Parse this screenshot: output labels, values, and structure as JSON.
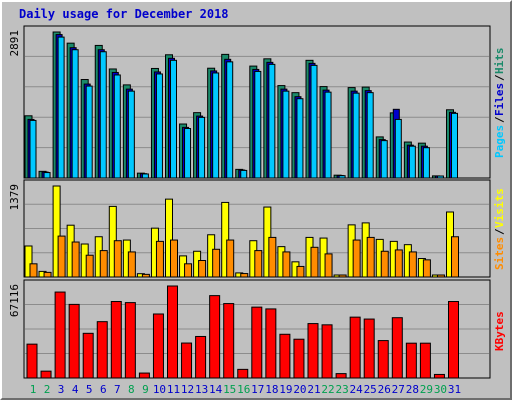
{
  "title": "Daily usage for December 2018",
  "chart_data": [
    {
      "type": "bar",
      "panel": "hits-files-pages",
      "ymax_label": "2891",
      "ymax": 2891,
      "x": [
        "1",
        "2",
        "3",
        "4",
        "5",
        "6",
        "7",
        "8",
        "9",
        "10",
        "11",
        "12",
        "13",
        "14",
        "15",
        "16",
        "17",
        "18",
        "19",
        "20",
        "21",
        "22",
        "23",
        "24",
        "25",
        "26",
        "27",
        "28",
        "29",
        "30",
        "31"
      ],
      "weekend_days": [
        "1",
        "2",
        "8",
        "9",
        "15",
        "16",
        "22",
        "23",
        "29",
        "30"
      ],
      "series": [
        {
          "name": "Hits",
          "color": "#1a8a6a",
          "values": [
            1232,
            132,
            2891,
            2670,
            1950,
            2625,
            2159,
            1844,
            96,
            2169,
            2440,
            1069,
            1294,
            2174,
            2448,
            171,
            2216,
            2360,
            1830,
            1690,
            2330,
            1810,
            56,
            1790,
            1800,
            814,
            1290,
            712,
            690,
            42,
            1351
          ]
        },
        {
          "name": "Files",
          "color": "#0000cc",
          "values": [
            1160,
            118,
            2840,
            2580,
            1860,
            2540,
            2090,
            1760,
            86,
            2100,
            2370,
            1002,
            1226,
            2120,
            2350,
            158,
            2150,
            2290,
            1760,
            1610,
            2270,
            1740,
            50,
            1720,
            1730,
            760,
            1360,
            650,
            630,
            38,
            1300
          ]
        },
        {
          "name": "Pages",
          "color": "#00c8ff",
          "values": [
            1140,
            108,
            2790,
            2540,
            1820,
            2500,
            2040,
            1720,
            80,
            2060,
            2330,
            980,
            1200,
            2080,
            2300,
            150,
            2110,
            2250,
            1720,
            1570,
            2230,
            1700,
            46,
            1680,
            1690,
            740,
            1160,
            630,
            600,
            34,
            1280
          ]
        }
      ],
      "legend": [
        "Pages",
        "/",
        "Files",
        "/",
        "Hits"
      ],
      "legend_placement": "right, vertical"
    },
    {
      "type": "bar",
      "panel": "visits-sites",
      "ymax_label": "1379",
      "ymax": 1379,
      "x": [
        "1",
        "2",
        "3",
        "4",
        "5",
        "6",
        "7",
        "8",
        "9",
        "10",
        "11",
        "12",
        "13",
        "14",
        "15",
        "16",
        "17",
        "18",
        "19",
        "20",
        "21",
        "22",
        "23",
        "24",
        "25",
        "26",
        "27",
        "28",
        "29",
        "30",
        "31"
      ],
      "series": [
        {
          "name": "Visits",
          "color": "#ffff00",
          "values": [
            470,
            85,
            1379,
            785,
            500,
            610,
            1070,
            560,
            50,
            740,
            1180,
            320,
            390,
            640,
            1130,
            62,
            550,
            1060,
            460,
            230,
            600,
            590,
            30,
            790,
            820,
            570,
            540,
            490,
            280,
            25,
            985
          ]
        },
        {
          "name": "Sites",
          "color": "#ff8c00",
          "values": [
            200,
            70,
            620,
            530,
            330,
            400,
            550,
            380,
            40,
            540,
            560,
            200,
            250,
            420,
            560,
            52,
            400,
            600,
            380,
            160,
            450,
            350,
            25,
            560,
            600,
            390,
            410,
            380,
            260,
            22,
            610
          ]
        }
      ],
      "legend": [
        "Sites",
        "/",
        "Visits"
      ],
      "legend_placement": "right, vertical"
    },
    {
      "type": "bar",
      "panel": "kbytes",
      "ymax_label": "67116",
      "ymax": 67116,
      "x": [
        "1",
        "2",
        "3",
        "4",
        "5",
        "6",
        "7",
        "8",
        "9",
        "10",
        "11",
        "12",
        "13",
        "14",
        "15",
        "16",
        "17",
        "18",
        "19",
        "20",
        "21",
        "22",
        "23",
        "24",
        "25",
        "26",
        "27",
        "28",
        "29",
        "30",
        "31"
      ],
      "series": [
        {
          "name": "KBytes",
          "color": "#ff0000",
          "values": [
            24700,
            5000,
            62700,
            53700,
            32600,
            41100,
            55800,
            55000,
            3600,
            46700,
            67116,
            25500,
            30300,
            60100,
            54300,
            6300,
            51700,
            50400,
            31900,
            28300,
            39700,
            38800,
            3200,
            44400,
            43000,
            27300,
            44000,
            25400,
            25400,
            2600,
            55800
          ]
        }
      ],
      "legend": [
        "KBytes"
      ],
      "legend_placement": "right, vertical"
    }
  ],
  "colors": {
    "background": "#c0c0c0",
    "grid": "#8c8c8c",
    "weekday_label": "#0000cc",
    "weekend_label": "#00a050",
    "title": "#0000cc"
  }
}
